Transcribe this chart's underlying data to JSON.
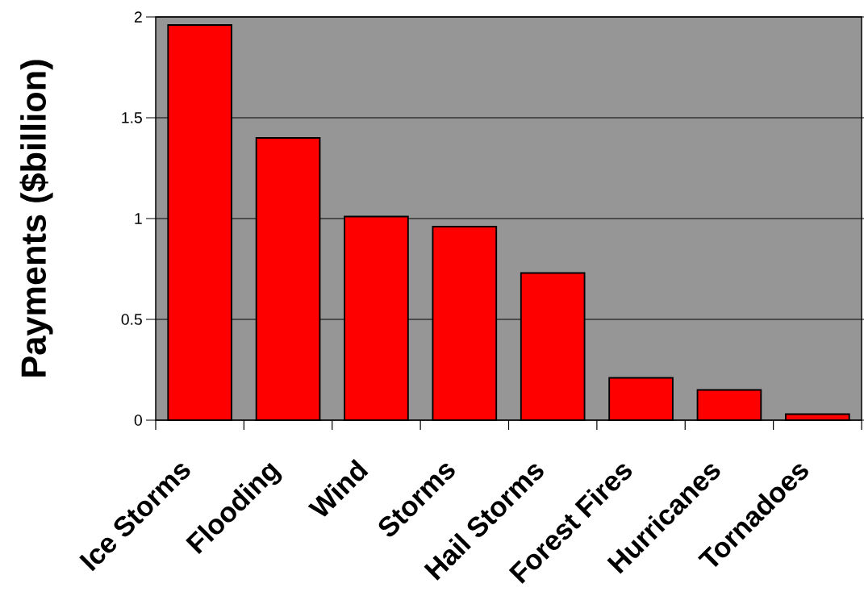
{
  "chart_data": {
    "type": "bar",
    "ylabel": "Payments ($billion)",
    "categories": [
      "Ice Storms",
      "Flooding",
      "Wind",
      "Storms",
      "Hail Storms",
      "Forest Fires",
      "Hurricanes",
      "Tornadoes"
    ],
    "values": [
      1.96,
      1.4,
      1.01,
      0.96,
      0.73,
      0.21,
      0.15,
      0.03
    ],
    "color": "#ff0000",
    "ylim": [
      0,
      2
    ],
    "yticks": [
      0,
      0.5,
      1,
      1.5,
      2
    ],
    "grid": "y"
  }
}
